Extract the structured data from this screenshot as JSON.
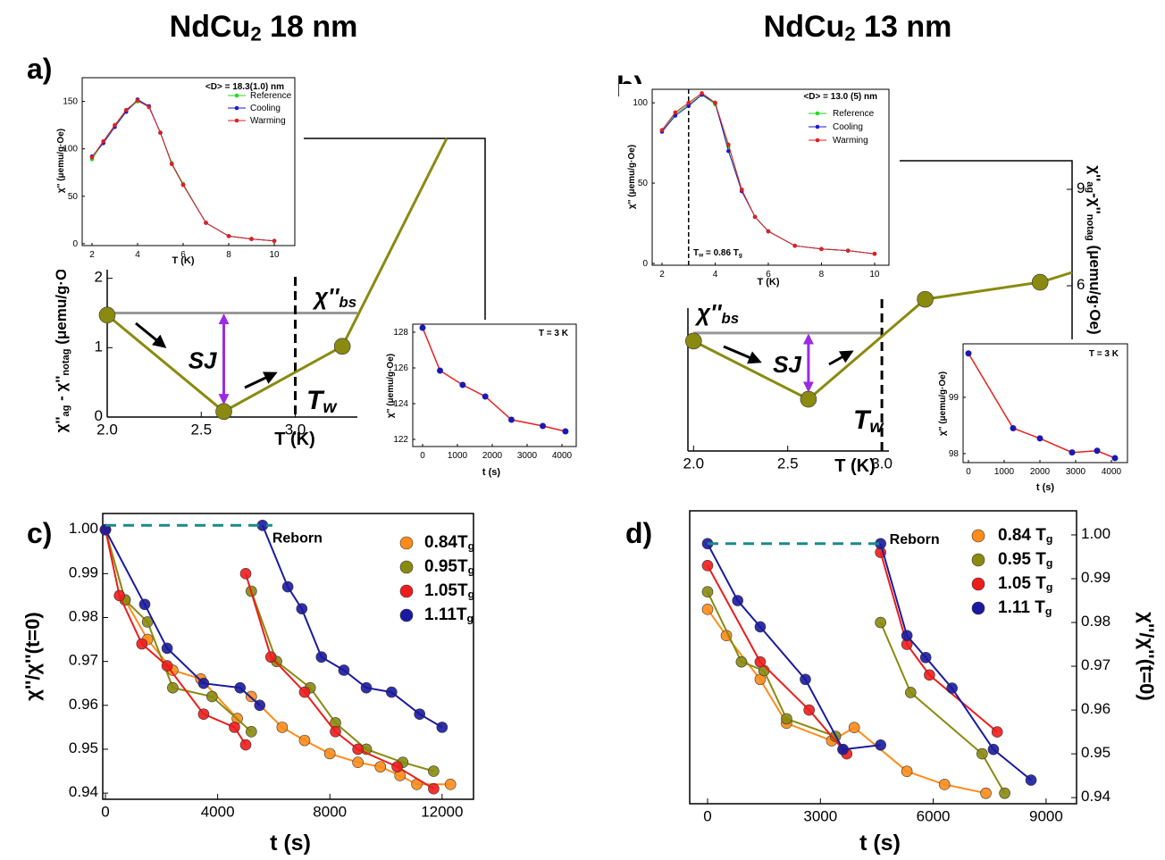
{
  "chart_data": [
    {
      "type": "line",
      "panel": "a)",
      "title": [
        "NdCu",
        "2",
        " 18 nm"
      ],
      "xlabel": "T (K)",
      "ylabel": [
        "χ''",
        "ag",
        " - χ''",
        "notag",
        " (μemu/g·Oe)"
      ],
      "series": [
        {
          "color": "#8a8a10",
          "x": [
            2,
            2.62,
            3.25
          ],
          "values": [
            1.47,
            0.08,
            1.02
          ]
        }
      ],
      "xlim": [
        2,
        3.33
      ],
      "ylim": [
        0,
        2.15
      ],
      "xticks": [
        {
          "value": 2,
          "label": "2.0"
        },
        2.5,
        {
          "value": 3,
          "label": "3.0"
        }
      ],
      "yticks": [
        0,
        1,
        2
      ],
      "bs_level": 1.5,
      "bs_label": [
        "χ''",
        "bs"
      ],
      "tw": 3,
      "tw_label": [
        "T",
        "w"
      ],
      "sj_label": "SJ"
    },
    {
      "type": "line",
      "xlabel": "T (K)",
      "ylabel": "χ'' (μemu/g·Oe)",
      "annotation": "<D> = 18.3(1.0) nm",
      "x": [
        2,
        2.5,
        3,
        3.5,
        4,
        4.5,
        5,
        5.5,
        6,
        7,
        8,
        9,
        10
      ],
      "series": [
        {
          "name": "Reference",
          "color": "#22dd22",
          "values": [
            89,
            107,
            125,
            140,
            150,
            145,
            117,
            85,
            63,
            22,
            8,
            5,
            3
          ]
        },
        {
          "name": "Cooling",
          "color": "#1a1ad0",
          "values": [
            92,
            106,
            123,
            139,
            152,
            145,
            117,
            84,
            62,
            22,
            8,
            5,
            3
          ]
        },
        {
          "name": "Warming",
          "color": "#e02020",
          "values": [
            91,
            108,
            125,
            141,
            151,
            144,
            117,
            84,
            62,
            22,
            8,
            5,
            3
          ]
        }
      ],
      "xlim": [
        1.57,
        10.9
      ],
      "ylim": [
        -2,
        175
      ],
      "xticks": [
        2,
        4,
        6,
        8,
        10
      ],
      "yticks": [
        0,
        50,
        100,
        150
      ]
    },
    {
      "type": "scatter",
      "xlabel": "t (s)",
      "ylabel": "χ'' (μemu/g·Oe)",
      "annotation": "T = 3 K",
      "series": [
        {
          "color": "#1a1ab0",
          "line_color": "#e82020",
          "x": [
            0,
            500,
            1150,
            1800,
            2550,
            3450,
            4100
          ],
          "values": [
            128.25,
            125.85,
            125.05,
            124.4,
            123.1,
            122.75,
            122.45
          ]
        }
      ],
      "xlim": [
        -282,
        4410
      ],
      "ylim": [
        121.6,
        128.45
      ],
      "xticks": [
        0,
        1000,
        2000,
        3000,
        4000
      ],
      "yticks": [
        122,
        124,
        126,
        128
      ]
    },
    {
      "type": "line",
      "panel": "b)",
      "title": [
        "NdCu",
        "2",
        " 13 nm"
      ],
      "xlabel": "T (K)",
      "ylabel": [
        "χ''",
        "ag",
        "-χ''",
        "notag",
        " (μemu/g·Oe)"
      ],
      "series": [
        {
          "color": "#8a8a10",
          "x": [
            2,
            2.61,
            3.23,
            3.84
          ],
          "values": [
            4.28,
            2.47,
            5.58,
            6.11
          ]
        }
      ],
      "xlim": [
        1.97,
        4.01
      ],
      "ylim": [
        0.86,
        9.89
      ],
      "xticks": [
        {
          "value": 2,
          "label": "2.0"
        },
        2.5,
        {
          "value": 3,
          "label": "3.0"
        }
      ],
      "yticks": [
        6,
        9
      ],
      "yaxis_side": "right",
      "bs_level": 4.53,
      "bs_label": [
        "χ''",
        "bs"
      ],
      "tw": 3,
      "tw_label": [
        "T",
        "w"
      ],
      "sj_label": "SJ"
    },
    {
      "type": "line",
      "xlabel": "T (K)",
      "ylabel": "χ'' (μemu/g·Oe)",
      "annotation": "<D> = 13.0 (5) nm",
      "x": [
        2,
        2.5,
        3,
        3.5,
        4,
        4.5,
        5,
        5.5,
        6,
        7,
        8,
        9,
        10
      ],
      "series": [
        {
          "name": "Reference",
          "color": "#22dd22",
          "values": [
            83,
            93,
            99,
            105,
            99,
            73,
            46,
            29,
            20,
            11,
            9,
            8,
            6
          ]
        },
        {
          "name": "Cooling",
          "color": "#1a1ad0",
          "values": [
            82,
            92,
            98,
            105,
            100,
            70,
            45,
            29,
            20,
            11,
            9,
            8,
            6
          ]
        },
        {
          "name": "Warming",
          "color": "#e02020",
          "values": [
            83,
            94,
            100,
            106,
            100,
            74,
            46,
            29,
            20,
            11,
            9,
            8,
            6
          ]
        }
      ],
      "xlim": [
        1.63,
        10.54
      ],
      "ylim": [
        -1.1,
        108.4
      ],
      "xticks": [
        2,
        4,
        6,
        8,
        10
      ],
      "yticks": [
        0,
        50,
        100
      ],
      "tw": 3,
      "tw_label": [
        "T",
        "w",
        " = 0.86 T",
        "g"
      ]
    },
    {
      "type": "scatter",
      "xlabel": "t (s)",
      "ylabel": "χ'' (μemu/g·Oe)",
      "annotation": "T = 3 K",
      "series": [
        {
          "color": "#1a1ab0",
          "line_color": "#e82020",
          "x": [
            0,
            1250,
            2000,
            2900,
            3600,
            4100
          ],
          "values": [
            99.78,
            98.45,
            98.27,
            98.02,
            98.05,
            97.92
          ]
        }
      ],
      "xlim": [
        -150,
        4450
      ],
      "ylim": [
        97.84,
        99.95
      ],
      "xticks": [
        0,
        1000,
        2000,
        3000,
        4000
      ],
      "yticks": [
        98,
        99
      ]
    },
    {
      "type": "scatter",
      "panel": "c)",
      "xlabel": "t (s)",
      "ylabel": "χ''/χ''(t=0)",
      "reference": {
        "y": 1.001,
        "x": [
          0,
          5950
        ],
        "label": "Reborn"
      },
      "series": [
        {
          "name": [
            "0.84T",
            "g"
          ],
          "color": "#ff8c1a",
          "x": [
            0,
            700,
            1500,
            2400,
            3400,
            4700,
            null,
            5200,
            6300,
            7100,
            8000,
            9000,
            9800,
            10500,
            11100,
            12300
          ],
          "values": [
            1.0,
            0.984,
            0.975,
            0.968,
            0.966,
            0.957,
            null,
            0.962,
            0.955,
            0.952,
            0.949,
            0.947,
            0.946,
            0.944,
            0.942,
            0.942
          ]
        },
        {
          "name": [
            "0.95T",
            "g"
          ],
          "color": "#8a8a10",
          "x": [
            0,
            700,
            1500,
            2400,
            3800,
            5200,
            null,
            5200,
            6100,
            7300,
            8200,
            9300,
            10600,
            11700
          ],
          "values": [
            1.0,
            0.984,
            0.979,
            0.964,
            0.962,
            0.954,
            null,
            0.986,
            0.97,
            0.964,
            0.956,
            0.95,
            0.947,
            0.945
          ]
        },
        {
          "name": [
            "1.05T",
            "g"
          ],
          "color": "#ee1c1c",
          "x": [
            0,
            500,
            1300,
            2200,
            3500,
            4600,
            5000,
            null,
            5000,
            5900,
            7100,
            8200,
            9000,
            10400,
            11700
          ],
          "values": [
            1.0,
            0.985,
            0.974,
            0.969,
            0.958,
            0.955,
            0.951,
            null,
            0.99,
            0.971,
            0.963,
            0.954,
            0.95,
            0.946,
            0.941
          ]
        },
        {
          "name": [
            "1.11T",
            "g"
          ],
          "color": "#1a1aa0",
          "x": [
            0,
            1400,
            2200,
            3500,
            4800,
            5500,
            null,
            5600,
            6500,
            7000,
            7700,
            8500,
            9300,
            10200,
            11200,
            12000
          ],
          "values": [
            1.0,
            0.983,
            0.973,
            0.965,
            0.964,
            0.96,
            null,
            1.001,
            0.987,
            0.982,
            0.971,
            0.968,
            0.964,
            0.963,
            0.958,
            0.955
          ]
        }
      ],
      "xlim": [
        -96,
        13120
      ],
      "ylim": [
        0.9386,
        1.0037
      ],
      "xticks": [
        0,
        4000,
        8000,
        12000
      ],
      "yticks": [
        0.94,
        0.95,
        0.96,
        0.97,
        0.98,
        0.99,
        {
          "value": 1,
          "label": "1.00"
        }
      ]
    },
    {
      "type": "scatter",
      "panel": "d)",
      "xlabel": "t (s)",
      "ylabel": "χ''/χ''(t=0)",
      "yaxis_side": "right",
      "reference": {
        "y": 0.998,
        "x": [
          0,
          4600
        ],
        "label": "Reborn"
      },
      "series": [
        {
          "name": [
            "0.84 T",
            "g"
          ],
          "color": "#ff8c1a",
          "x": [
            0,
            500,
            1400,
            2100,
            3300,
            3900,
            5300,
            6300,
            7400
          ],
          "values": [
            0.983,
            0.977,
            0.967,
            0.957,
            0.953,
            0.956,
            0.946,
            0.943,
            0.941
          ]
        },
        {
          "name": [
            "0.95 T",
            "g"
          ],
          "color": "#8a8a10",
          "x": [
            0,
            900,
            1500,
            2100,
            3400,
            3600,
            null,
            4600,
            5400,
            7300,
            7900
          ],
          "values": [
            0.987,
            0.971,
            0.969,
            0.958,
            0.954,
            0.951,
            null,
            0.98,
            0.964,
            0.95,
            0.941
          ]
        },
        {
          "name": [
            "1.05 T",
            "g"
          ],
          "color": "#ee1c1c",
          "x": [
            0,
            1400,
            2700,
            3700,
            null,
            4600,
            5300,
            5900,
            7700
          ],
          "values": [
            0.993,
            0.971,
            0.96,
            0.95,
            null,
            0.996,
            0.975,
            0.968,
            0.955
          ]
        },
        {
          "name": [
            "1.11 T",
            "g"
          ],
          "color": "#1a1aa0",
          "x": [
            0,
            800,
            1400,
            2600,
            3600,
            4600,
            null,
            4600,
            5300,
            5800,
            6500,
            7600,
            8600
          ],
          "values": [
            0.998,
            0.985,
            0.979,
            0.967,
            0.951,
            0.952,
            null,
            0.998,
            0.977,
            0.972,
            0.965,
            0.951,
            0.944
          ]
        }
      ],
      "xlim": [
        -475,
        9810
      ],
      "ylim": [
        0.9386,
        1.0055
      ],
      "xticks": [
        0,
        3000,
        6000,
        9000
      ],
      "yticks": [
        0.94,
        0.95,
        0.96,
        0.97,
        0.98,
        0.99,
        {
          "value": 1,
          "label": "1.00"
        }
      ]
    }
  ]
}
